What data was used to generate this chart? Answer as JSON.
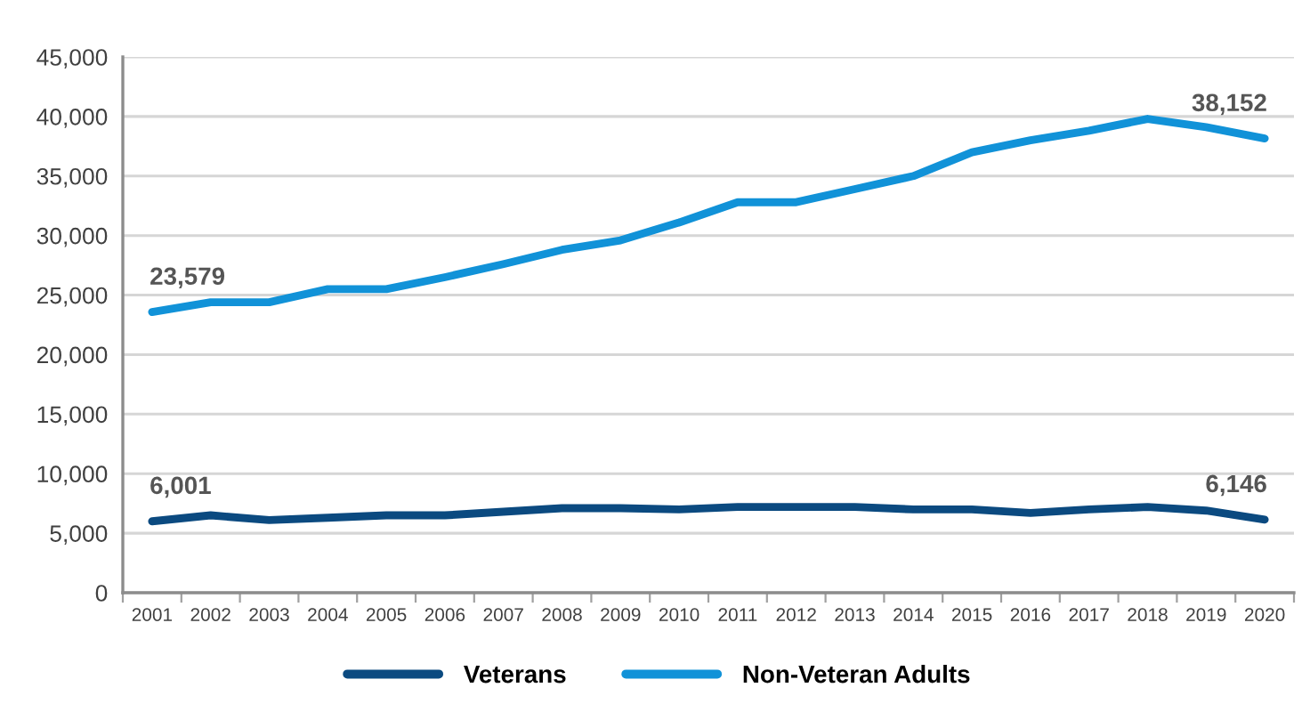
{
  "chart_data": {
    "type": "line",
    "categories": [
      "2001",
      "2002",
      "2003",
      "2004",
      "2005",
      "2006",
      "2007",
      "2008",
      "2009",
      "2010",
      "2011",
      "2012",
      "2013",
      "2014",
      "2015",
      "2016",
      "2017",
      "2018",
      "2019",
      "2020"
    ],
    "series": [
      {
        "name": "Veterans",
        "color": "#0b4a80",
        "values": [
          6001,
          6500,
          6100,
          6300,
          6500,
          6500,
          6800,
          7100,
          7100,
          7000,
          7200,
          7200,
          7200,
          7000,
          7000,
          6700,
          7000,
          7200,
          6900,
          6146
        ],
        "value_labels": [
          "6,001",
          null,
          null,
          null,
          null,
          null,
          null,
          null,
          null,
          null,
          null,
          null,
          null,
          null,
          null,
          null,
          null,
          null,
          null,
          "6,146"
        ]
      },
      {
        "name": "Non-Veteran Adults",
        "color": "#1192d8",
        "values": [
          23579,
          24400,
          24400,
          25500,
          25500,
          26500,
          27600,
          28800,
          29600,
          31100,
          32800,
          32800,
          33900,
          35000,
          37000,
          38000,
          38800,
          39800,
          39100,
          38152
        ],
        "value_labels": [
          "23,579",
          null,
          null,
          null,
          null,
          null,
          null,
          null,
          null,
          null,
          null,
          null,
          null,
          null,
          null,
          null,
          null,
          null,
          null,
          "38,152"
        ]
      }
    ],
    "ylim": [
      0,
      45000
    ],
    "yticks": [
      0,
      {
        "value": 5000,
        "label": "5,000"
      },
      {
        "value": 10000,
        "label": "10,000"
      },
      {
        "value": 15000,
        "label": "15,000"
      },
      {
        "value": 20000,
        "label": "20,000"
      },
      {
        "value": 25000,
        "label": "25,000"
      },
      {
        "value": 30000,
        "label": "30,000"
      },
      {
        "value": 35000,
        "label": "35,000"
      },
      {
        "value": 40000,
        "label": "40,000"
      },
      {
        "value": 45000,
        "label": "45,000"
      }
    ],
    "grid": "y",
    "legend": "bottom",
    "line_style": "solid"
  }
}
